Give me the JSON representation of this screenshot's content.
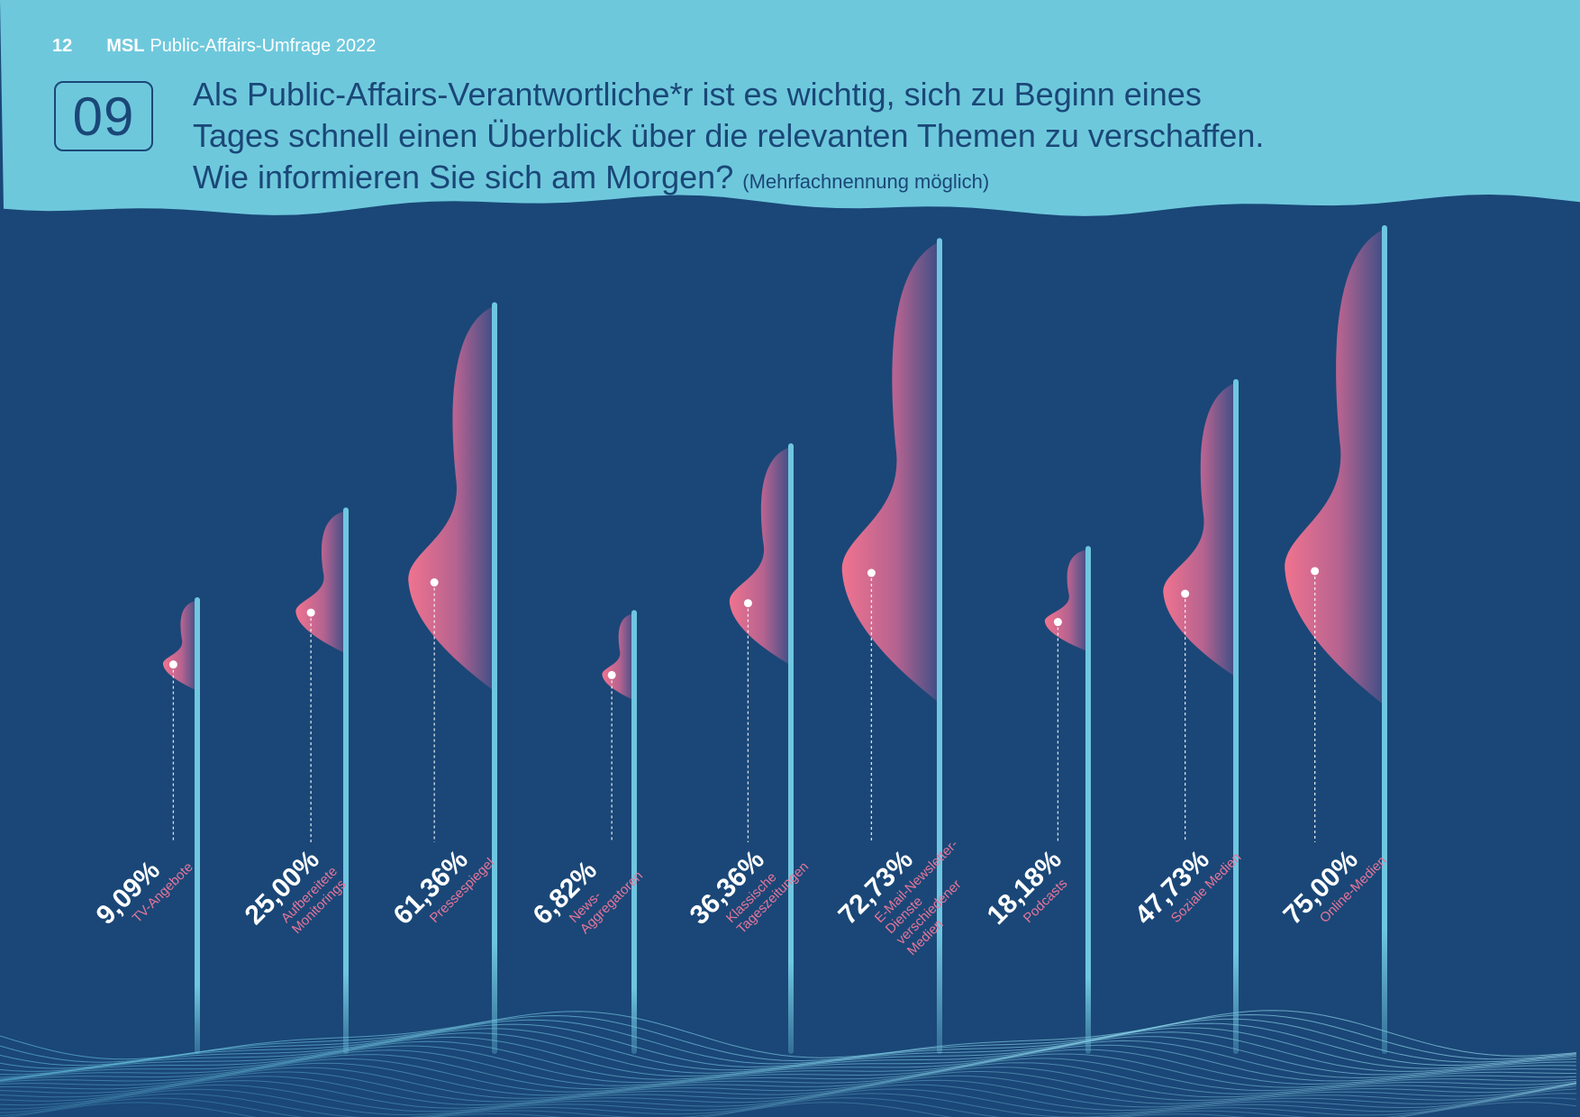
{
  "header": {
    "page_number": "12",
    "brand": "MSL",
    "publication": "Public-Affairs-Umfrage 2022"
  },
  "question": {
    "number": "09",
    "line1": "Als Public-Affairs-Verantwortliche*r ist es wichtig, sich zu Beginn eines",
    "line2": "Tages schnell einen Überblick über die relevanten Themen zu verschaffen.",
    "line3": "Wie informieren Sie sich am Morgen?",
    "note": "(Mehrfachnennung möglich)"
  },
  "colors": {
    "top_band": "#6ec8dc",
    "background": "#1a4777",
    "pole": "#6fc6e0",
    "shape_pink": "#f0738f",
    "label_pink": "#e8759a",
    "value_white": "#ffffff"
  },
  "chart_data": {
    "type": "bar",
    "unit": "%",
    "ylim": [
      0,
      100
    ],
    "grid": false,
    "legend": "none",
    "categories": [
      "TV-Angebote",
      "Aufbereitete Monitorings",
      "Pressespiegel",
      "News-Aggregatoren",
      "Klassische Tageszeitungen",
      "E-Mail-Newsletter-Dienste verschiedener Medien",
      "Podcasts",
      "Soziale Medien",
      "Online-Medien"
    ],
    "category_lines": [
      [
        "TV-Angebote"
      ],
      [
        "Aufbereitete",
        "Monitorings"
      ],
      [
        "Pressespiegel"
      ],
      [
        "News-",
        "Aggregatoren"
      ],
      [
        "Klassische",
        "Tageszeitungen"
      ],
      [
        "E-Mail-Newsletter-",
        "Dienste",
        "verschiedener",
        "Medien"
      ],
      [
        "Podcasts"
      ],
      [
        "Soziale Medien"
      ],
      [
        "Online-Medien"
      ]
    ],
    "values": [
      9.09,
      25.0,
      61.36,
      6.82,
      36.36,
      72.73,
      18.18,
      47.73,
      75.0
    ],
    "value_labels": [
      "9,09%",
      "25,00%",
      "61,36%",
      "6,82%",
      "36,36%",
      "72,73%",
      "18,18%",
      "47,73%",
      "75,00%"
    ]
  }
}
